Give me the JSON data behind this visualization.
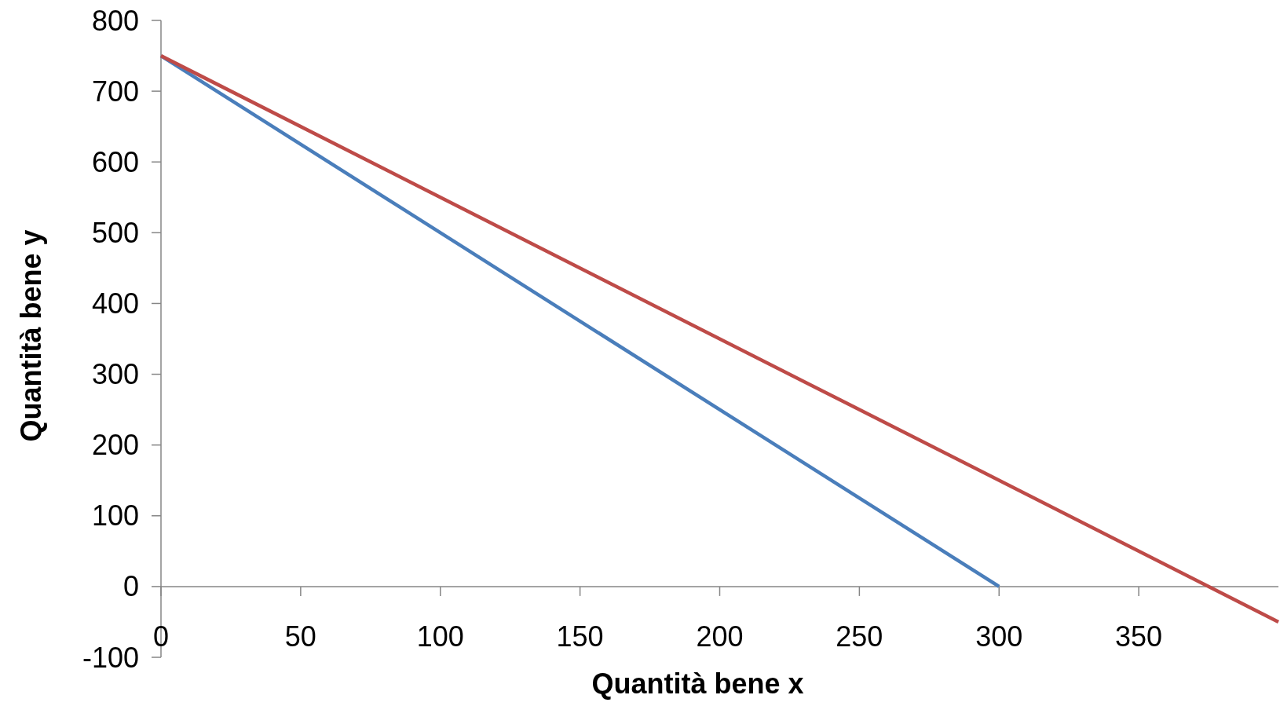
{
  "chart_data": {
    "type": "line",
    "xlabel": "Quantità bene x",
    "ylabel": "Quantità bene y",
    "xlim": [
      0,
      400
    ],
    "ylim": [
      -100,
      800
    ],
    "xticks": [
      0,
      50,
      100,
      150,
      200,
      250,
      300,
      350
    ],
    "yticks": [
      -100,
      0,
      100,
      200,
      300,
      400,
      500,
      600,
      700,
      800
    ],
    "grid": false,
    "marker": "none",
    "line_style": "solid",
    "series": [
      {
        "color": "#4a7ebb",
        "x": [
          0,
          300
        ],
        "values": [
          750,
          0
        ]
      },
      {
        "color": "#be4b48",
        "x": [
          0,
          400
        ],
        "values": [
          750,
          -50
        ]
      }
    ]
  }
}
